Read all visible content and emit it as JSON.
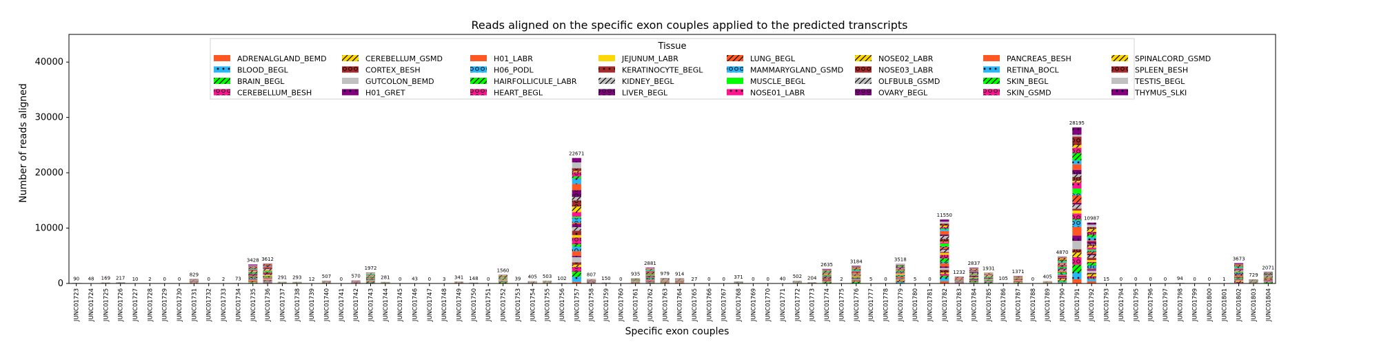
{
  "chart_data": {
    "type": "bar",
    "stacked": true,
    "title": "Reads aligned on the specific exon couples applied to the predicted transcripts",
    "xlabel": "Specific exon couples",
    "ylabel": "Number of reads aligned",
    "ylim": [
      0,
      45000
    ],
    "yticks": [
      0,
      10000,
      20000,
      30000,
      40000
    ],
    "grid": false,
    "legend": {
      "title": "Tissue",
      "placement": "top-center",
      "columns": 8
    },
    "categories": [
      "JUNC01723",
      "JUNC01724",
      "JUNC01725",
      "JUNC01726",
      "JUNC01727",
      "JUNC01728",
      "JUNC01729",
      "JUNC01730",
      "JUNC01731",
      "JUNC01732",
      "JUNC01733",
      "JUNC01734",
      "JUNC01735",
      "JUNC01736",
      "JUNC01737",
      "JUNC01738",
      "JUNC01739",
      "JUNC01740",
      "JUNC01741",
      "JUNC01742",
      "JUNC01743",
      "JUNC01744",
      "JUNC01745",
      "JUNC01746",
      "JUNC01747",
      "JUNC01748",
      "JUNC01749",
      "JUNC01750",
      "JUNC01751",
      "JUNC01752",
      "JUNC01753",
      "JUNC01754",
      "JUNC01755",
      "JUNC01756",
      "JUNC01757",
      "JUNC01758",
      "JUNC01759",
      "JUNC01760",
      "JUNC01761",
      "JUNC01762",
      "JUNC01763",
      "JUNC01764",
      "JUNC01765",
      "JUNC01766",
      "JUNC01767",
      "JUNC01768",
      "JUNC01769",
      "JUNC01770",
      "JUNC01771",
      "JUNC01772",
      "JUNC01773",
      "JUNC01774",
      "JUNC01775",
      "JUNC01776",
      "JUNC01777",
      "JUNC01778",
      "JUNC01779",
      "JUNC01780",
      "JUNC01781",
      "JUNC01782",
      "JUNC01783",
      "JUNC01784",
      "JUNC01785",
      "JUNC01786",
      "JUNC01787",
      "JUNC01788",
      "JUNC01789",
      "JUNC01790",
      "JUNC01791",
      "JUNC01792",
      "JUNC01793",
      "JUNC01794",
      "JUNC01795",
      "JUNC01796",
      "JUNC01797",
      "JUNC01798",
      "JUNC01799",
      "JUNC01800",
      "JUNC01801",
      "JUNC01802",
      "JUNC01803",
      "JUNC01804"
    ],
    "totals": [
      90,
      48,
      169,
      217,
      10,
      2,
      0,
      0,
      829,
      0,
      2,
      73,
      3428,
      3612,
      291,
      293,
      12,
      507,
      0,
      570,
      1972,
      281,
      0,
      43,
      0,
      3,
      341,
      148,
      0,
      1560,
      39,
      405,
      503,
      102,
      22671,
      807,
      150,
      0,
      935,
      2881,
      979,
      914,
      27,
      0,
      0,
      371,
      0,
      0,
      40,
      502,
      204,
      2635,
      2,
      3184,
      5,
      0,
      3518,
      5,
      0,
      11550,
      1232,
      2837,
      1931,
      105,
      1371,
      0,
      405,
      4870,
      28195,
      10987,
      15,
      0,
      0,
      0,
      0,
      94,
      0,
      0,
      1,
      3673,
      729,
      2071
    ],
    "series": [
      {
        "name": "ADRENALGLAND_BEMD",
        "color": "#ff5722",
        "hatch": "none"
      },
      {
        "name": "BLOOD_BEGL",
        "color": "#29b6f6",
        "hatch": "dot"
      },
      {
        "name": "BRAIN_BEGL",
        "color": "#00ff00",
        "hatch": "slash"
      },
      {
        "name": "CEREBELLUM_BESH",
        "color": "#ff1493",
        "hatch": "ring"
      },
      {
        "name": "CEREBELLUM_GSMD",
        "color": "#ffd700",
        "hatch": "slash"
      },
      {
        "name": "CORTEX_BESH",
        "color": "#a52a2a",
        "hatch": "ring"
      },
      {
        "name": "GUTCOLON_BEMD",
        "color": "#c0c0c0",
        "hatch": "none"
      },
      {
        "name": "H01_GRET",
        "color": "#800080",
        "hatch": "dot"
      },
      {
        "name": "H01_LABR",
        "color": "#ff5722",
        "hatch": "none"
      },
      {
        "name": "H06_PODL",
        "color": "#29b6f6",
        "hatch": "ring"
      },
      {
        "name": "HAIRFOLLICULE_LABR",
        "color": "#00ff00",
        "hatch": "slash"
      },
      {
        "name": "HEART_BEGL",
        "color": "#ff1493",
        "hatch": "ring"
      },
      {
        "name": "JEJUNUM_LABR",
        "color": "#ffd700",
        "hatch": "none"
      },
      {
        "name": "KERATINOCYTE_BEGL",
        "color": "#a52a2a",
        "hatch": "dot"
      },
      {
        "name": "KIDNEY_BEGL",
        "color": "#c0c0c0",
        "hatch": "slash"
      },
      {
        "name": "LIVER_BEGL",
        "color": "#800080",
        "hatch": "ring"
      },
      {
        "name": "LUNG_BEGL",
        "color": "#ff5722",
        "hatch": "slash"
      },
      {
        "name": "MAMMARYGLAND_GSMD",
        "color": "#29b6f6",
        "hatch": "ring"
      },
      {
        "name": "MUSCLE_BEGL",
        "color": "#00ff00",
        "hatch": "none"
      },
      {
        "name": "NOSE01_LABR",
        "color": "#ff1493",
        "hatch": "dot"
      },
      {
        "name": "NOSE02_LABR",
        "color": "#ffd700",
        "hatch": "slash"
      },
      {
        "name": "NOSE03_LABR",
        "color": "#a52a2a",
        "hatch": "ring"
      },
      {
        "name": "OLFBULB_GSMD",
        "color": "#c0c0c0",
        "hatch": "slash"
      },
      {
        "name": "OVARY_BEGL",
        "color": "#800080",
        "hatch": "ring"
      },
      {
        "name": "PANCREAS_BESH",
        "color": "#ff5722",
        "hatch": "none"
      },
      {
        "name": "RETINA_BOCL",
        "color": "#29b6f6",
        "hatch": "dot"
      },
      {
        "name": "SKIN_BEGL",
        "color": "#00ff00",
        "hatch": "slash"
      },
      {
        "name": "SKIN_GSMD",
        "color": "#ff1493",
        "hatch": "ring"
      },
      {
        "name": "SPINALCORD_GSMD",
        "color": "#ffd700",
        "hatch": "slash"
      },
      {
        "name": "SPLEEN_BESH",
        "color": "#a52a2a",
        "hatch": "ring"
      },
      {
        "name": "TESTIS_BEGL",
        "color": "#c0c0c0",
        "hatch": "none"
      },
      {
        "name": "THYMUS_SLKI",
        "color": "#800080",
        "hatch": "dot"
      }
    ]
  }
}
